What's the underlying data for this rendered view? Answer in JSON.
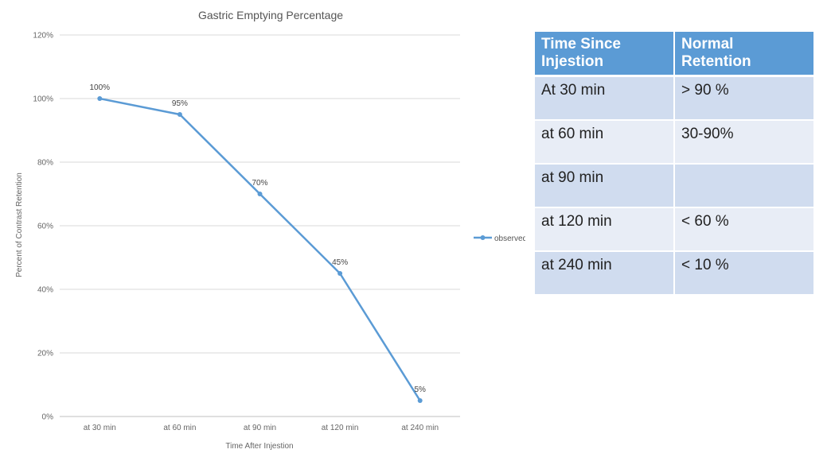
{
  "chart_data": {
    "type": "line",
    "title": "Gastric Emptying Percentage",
    "xlabel": "Time After Injestion",
    "ylabel": "Percent of Contrast Retention",
    "categories": [
      "at 30 min",
      "at 60 min",
      "at 90 min",
      "at 120 min",
      "at 240 min"
    ],
    "series": [
      {
        "name": "observed",
        "values": [
          100,
          95,
          70,
          45,
          5
        ],
        "data_labels": [
          "100%",
          "95%",
          "70%",
          "45%",
          "5%"
        ],
        "color": "#5b9bd5"
      }
    ],
    "ylim": [
      0,
      120
    ],
    "yticks": [
      0,
      20,
      40,
      60,
      80,
      100,
      120
    ],
    "ytick_labels": [
      "0%",
      "20%",
      "40%",
      "60%",
      "80%",
      "100%",
      "120%"
    ],
    "grid": true,
    "legend_position": "right"
  },
  "table": {
    "headers": [
      "Time Since Injestion",
      "Normal Retention"
    ],
    "rows": [
      [
        "At 30 min",
        "> 90 %"
      ],
      [
        "at 60 min",
        "30-90%"
      ],
      [
        "at 90 min",
        ""
      ],
      [
        "at 120 min",
        "< 60 %"
      ],
      [
        "at 240 min",
        "< 10 %"
      ]
    ],
    "header_color": "#5b9bd5",
    "row_colors": [
      "#d0dcef",
      "#e8edf6"
    ]
  }
}
